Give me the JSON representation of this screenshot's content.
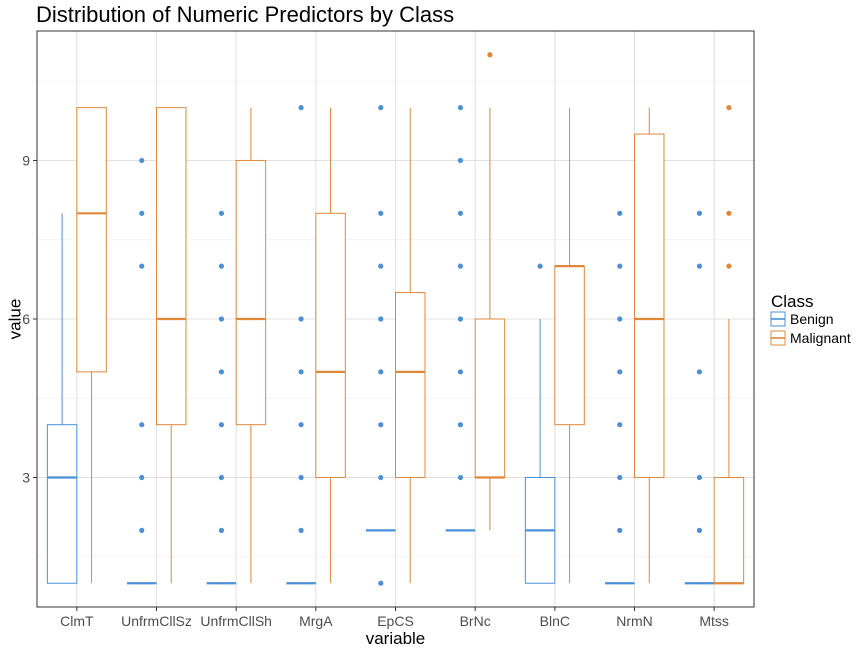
{
  "chart_data": {
    "type": "boxplot",
    "title": "Distribution of Numeric Predictors by Class",
    "xlabel": "variable",
    "ylabel": "value",
    "ylim": [
      0.55,
      11.45
    ],
    "yticks": [
      3,
      6,
      9
    ],
    "grid": true,
    "legend": {
      "title": "Class",
      "position": "right"
    },
    "categories": [
      "ClmT",
      "UnfrmCllSz",
      "UnfrmCllSh",
      "MrgA",
      "EpCS",
      "BrNc",
      "BlnC",
      "NrmN",
      "Mtss"
    ],
    "series": [
      {
        "name": "Benign",
        "color": "#4a90d9",
        "boxes": [
          {
            "min": 1,
            "q1": 1,
            "median": 3,
            "q3": 4,
            "max": 8,
            "outliers": []
          },
          {
            "min": 1,
            "q1": 1,
            "median": 1,
            "q3": 1,
            "max": 1,
            "outliers": [
              2,
              3,
              4,
              7,
              8,
              9
            ]
          },
          {
            "min": 1,
            "q1": 1,
            "median": 1,
            "q3": 1,
            "max": 1,
            "outliers": [
              2,
              3,
              4,
              5,
              6,
              7,
              8
            ]
          },
          {
            "min": 1,
            "q1": 1,
            "median": 1,
            "q3": 1,
            "max": 1,
            "outliers": [
              2,
              3,
              4,
              5,
              6,
              10
            ]
          },
          {
            "min": 2,
            "q1": 2,
            "median": 2,
            "q3": 2,
            "max": 2,
            "outliers": [
              1,
              3,
              4,
              5,
              6,
              7,
              8,
              10
            ]
          },
          {
            "min": 2,
            "q1": 2,
            "median": 2,
            "q3": 2,
            "max": 2,
            "outliers": [
              3,
              4,
              5,
              6,
              7,
              8,
              9,
              10
            ]
          },
          {
            "min": 1,
            "q1": 1,
            "median": 2,
            "q3": 3,
            "max": 6,
            "outliers": [
              7
            ]
          },
          {
            "min": 1,
            "q1": 1,
            "median": 1,
            "q3": 1,
            "max": 1,
            "outliers": [
              2,
              3,
              4,
              5,
              6,
              7,
              8
            ]
          },
          {
            "min": 1,
            "q1": 1,
            "median": 1,
            "q3": 1,
            "max": 1,
            "outliers": [
              2,
              3,
              5,
              7,
              8
            ]
          }
        ]
      },
      {
        "name": "Malignant",
        "color": "#e0883a",
        "boxes": [
          {
            "min": 1,
            "q1": 5,
            "median": 8,
            "q3": 10,
            "max": 10,
            "outliers": []
          },
          {
            "min": 1,
            "q1": 4,
            "median": 6,
            "q3": 10,
            "max": 10,
            "outliers": []
          },
          {
            "min": 1,
            "q1": 4,
            "median": 6,
            "q3": 9,
            "max": 10,
            "outliers": []
          },
          {
            "min": 1,
            "q1": 3,
            "median": 5,
            "q3": 8,
            "max": 10,
            "outliers": []
          },
          {
            "min": 1,
            "q1": 3,
            "median": 5,
            "q3": 6.5,
            "max": 10,
            "outliers": []
          },
          {
            "min": 2,
            "q1": 3,
            "median": 3,
            "q3": 6,
            "max": 10,
            "outliers": [
              11
            ]
          },
          {
            "min": 1,
            "q1": 4,
            "median": 7,
            "q3": 7,
            "max": 10,
            "outliers": []
          },
          {
            "min": 1,
            "q1": 3,
            "median": 6,
            "q3": 9.5,
            "max": 10,
            "outliers": []
          },
          {
            "min": 1,
            "q1": 1,
            "median": 1,
            "q3": 3,
            "max": 6,
            "outliers": [
              7,
              8,
              10
            ]
          }
        ]
      }
    ]
  }
}
